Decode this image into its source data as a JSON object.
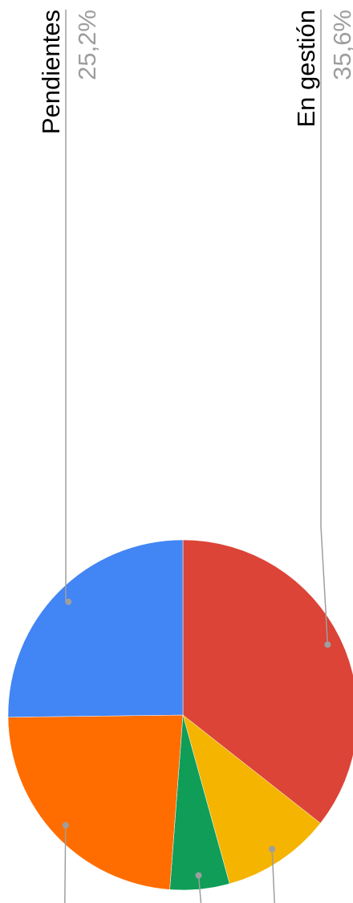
{
  "chart_data": {
    "type": "pie",
    "categories": [
      "En gestión",
      null,
      null,
      null,
      "Pendientes"
    ],
    "values": [
      35.6,
      10.1,
      5.5,
      23.6,
      25.2
    ],
    "value_labels": [
      "35,6%",
      null,
      null,
      null,
      "25,2%"
    ],
    "colors": [
      "#db4437",
      "#f4b400",
      "#0f9d58",
      "#ff6d00",
      "#4285f4"
    ]
  }
}
